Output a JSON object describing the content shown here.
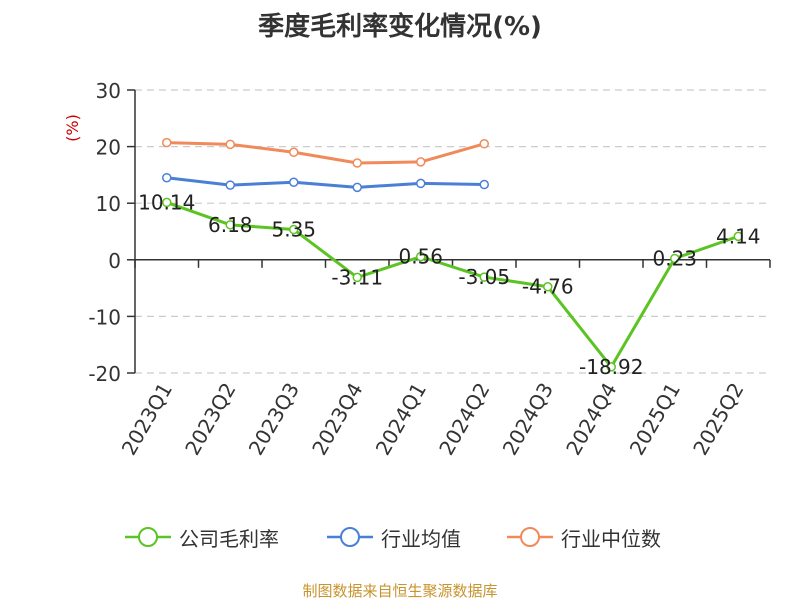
{
  "title": "季度毛利率变化情况(%)",
  "source": "制图数据来自恒生聚源数据库",
  "colors": {
    "company": "#5bc423",
    "industry_avg": "#4a7fd6",
    "industry_median": "#f08a5a",
    "unit_label": "#cc0000",
    "grid": "#cccccc",
    "axis": "#333333"
  },
  "chart_data": {
    "type": "line",
    "title": "季度毛利率变化情况(%)",
    "ylabel": "(%)",
    "xlabel": "",
    "ylim": [
      -20,
      30
    ],
    "yticks": [
      -20,
      -10,
      0,
      10,
      20,
      30
    ],
    "grid": true,
    "legend_position": "bottom",
    "categories": [
      "2023Q1",
      "2023Q2",
      "2023Q3",
      "2023Q4",
      "2024Q1",
      "2024Q2",
      "2024Q3",
      "2024Q4",
      "2025Q1",
      "2025Q2"
    ],
    "series": [
      {
        "name": "公司毛利率",
        "color": "#5bc423",
        "values": [
          10.14,
          6.18,
          5.35,
          -3.11,
          0.56,
          -3.05,
          -4.76,
          -18.92,
          0.23,
          4.14
        ],
        "labels": [
          "10.14",
          "6.18",
          "5.35",
          "-3.11",
          "0.56",
          "-3.05",
          "-4.76",
          "-18.92",
          "0.23",
          "4.14"
        ]
      },
      {
        "name": "行业均值",
        "color": "#4a7fd6",
        "values": [
          14.5,
          13.2,
          13.7,
          12.8,
          13.5,
          13.3,
          null,
          null,
          null,
          null
        ]
      },
      {
        "name": "行业中位数",
        "color": "#f08a5a",
        "values": [
          20.7,
          20.4,
          19.0,
          17.1,
          17.3,
          20.5,
          null,
          null,
          null,
          null
        ]
      }
    ]
  }
}
